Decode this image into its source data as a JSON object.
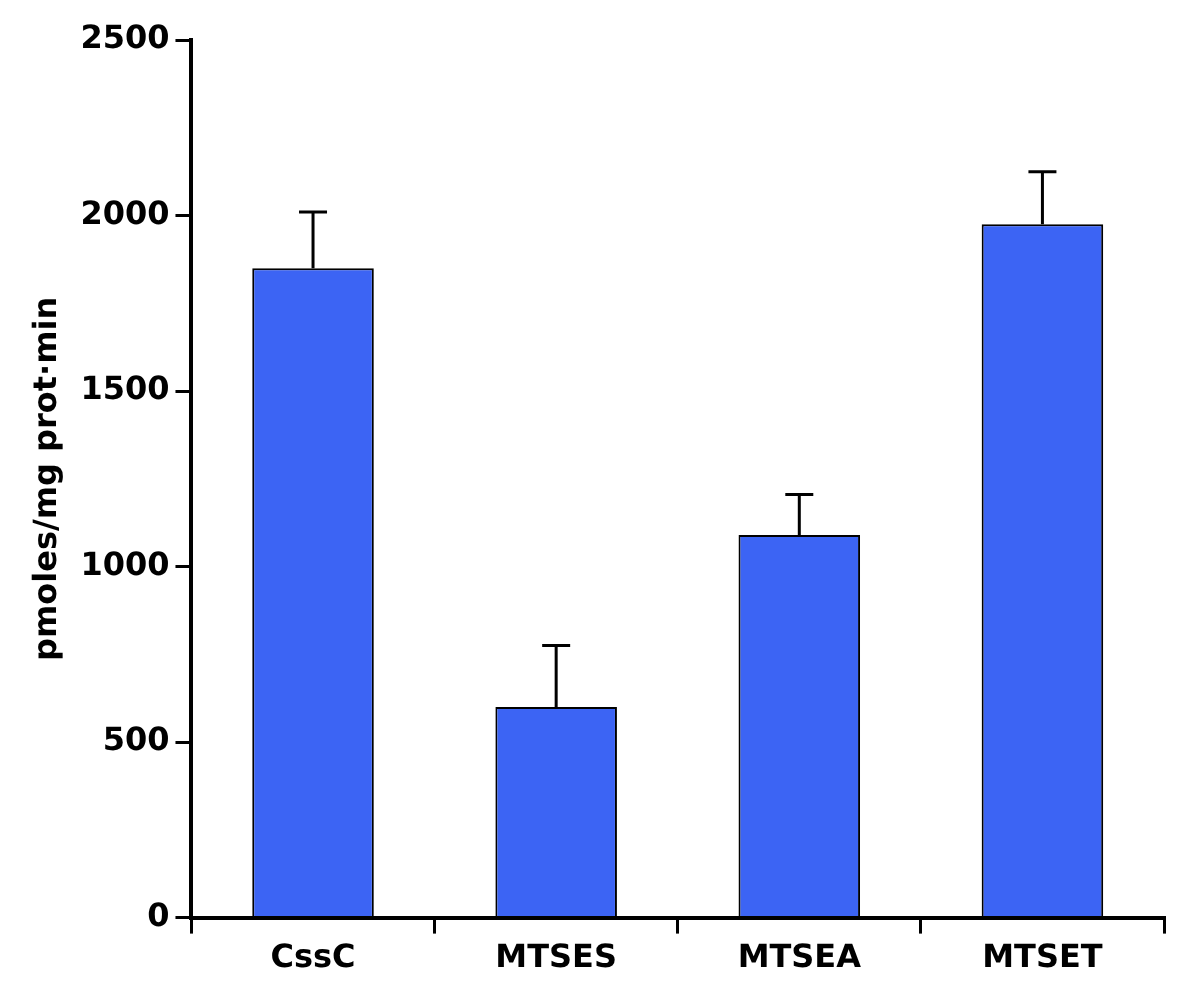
{
  "chart_data": {
    "type": "bar",
    "ylabel": "pmoles/mg prot·min",
    "categories": [
      "CssC",
      "MTSES",
      "MTSEA",
      "MTSET"
    ],
    "values": [
      1850,
      600,
      1090,
      1975
    ],
    "color": "#3c64f4",
    "errors": [
      [
        1850,
        2010
      ],
      [
        600,
        775
      ],
      [
        1090,
        1205
      ],
      [
        1975,
        2125
      ]
    ],
    "ylim": [
      0,
      2500
    ],
    "yticks": [
      0,
      500,
      1000,
      1500,
      2000,
      2500
    ],
    "grid": false,
    "legend": false
  }
}
